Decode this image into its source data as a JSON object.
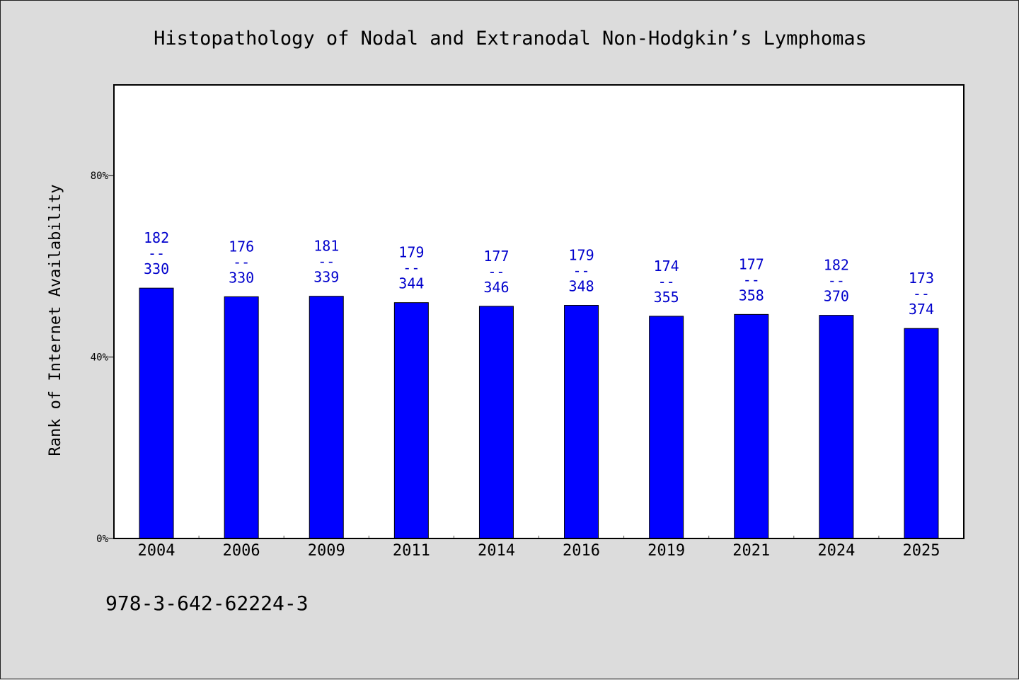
{
  "chart_data": {
    "type": "bar",
    "title": "Histopathology of Nodal and Extranodal Non-Hodgkin’s Lymphomas",
    "ylabel": "Rank of Internet Availability",
    "xlabel": "",
    "y_unit": "%",
    "ylim": [
      0,
      100
    ],
    "yticks": [
      {
        "value": 0,
        "label": "0%"
      },
      {
        "value": 40,
        "label": "40%"
      },
      {
        "value": 80,
        "label": "80%"
      }
    ],
    "categories": [
      "2004",
      "2006",
      "2009",
      "2011",
      "2014",
      "2016",
      "2019",
      "2021",
      "2024",
      "2025"
    ],
    "values": [
      55.2,
      53.3,
      53.4,
      52.0,
      51.2,
      51.4,
      49.0,
      49.4,
      49.2,
      46.3
    ],
    "bar_labels": [
      {
        "top": "182",
        "sep": "--",
        "bottom": "330"
      },
      {
        "top": "176",
        "sep": "--",
        "bottom": "330"
      },
      {
        "top": "181",
        "sep": "--",
        "bottom": "339"
      },
      {
        "top": "179",
        "sep": "--",
        "bottom": "344"
      },
      {
        "top": "177",
        "sep": "--",
        "bottom": "346"
      },
      {
        "top": "179",
        "sep": "--",
        "bottom": "348"
      },
      {
        "top": "174",
        "sep": "--",
        "bottom": "355"
      },
      {
        "top": "177",
        "sep": "--",
        "bottom": "358"
      },
      {
        "top": "182",
        "sep": "--",
        "bottom": "370"
      },
      {
        "top": "173",
        "sep": "--",
        "bottom": "374"
      }
    ],
    "grid": false,
    "bar_color": "#0000ff",
    "label_color": "#0000cc"
  },
  "footer": {
    "isbn": "978-3-642-62224-3"
  }
}
